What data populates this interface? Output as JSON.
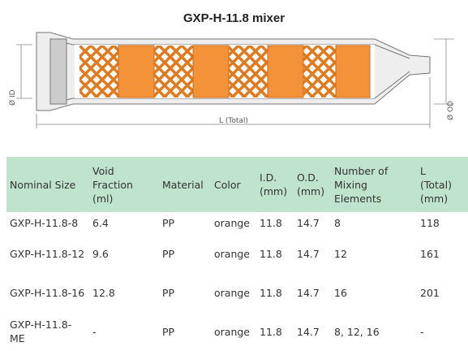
{
  "title": "GXP-H-11.8 mixer",
  "diagram": {
    "id_label": "Ø ID",
    "length_label": "L (Total)",
    "od_label": "Ø OD"
  },
  "table": {
    "headers": [
      "Nominal Size",
      "Void\nFraction\n(ml)",
      "Material",
      "Color",
      "I.D.\n(mm)",
      "O.D.\n(mm)",
      "Number of\nMixing\nElements",
      "L\n(Total)\n(mm)"
    ],
    "rows": [
      [
        "GXP-H-11.8-8",
        "6.4",
        "PP",
        "orange",
        "11.8",
        "14.7",
        "8",
        "118"
      ],
      [
        "GXP-H-11.8-12",
        "9.6",
        "PP",
        "orange",
        "11.8",
        "14.7",
        "12",
        "161"
      ],
      [
        "GXP-H-11.8-16",
        "12.8",
        "PP",
        "orange",
        "11.8",
        "14.7",
        "16",
        "201"
      ],
      [
        "GXP-H-11.8-ME",
        "-",
        "PP",
        "orange",
        "11.8",
        "14.7",
        "8, 12, 16",
        "-"
      ]
    ]
  }
}
